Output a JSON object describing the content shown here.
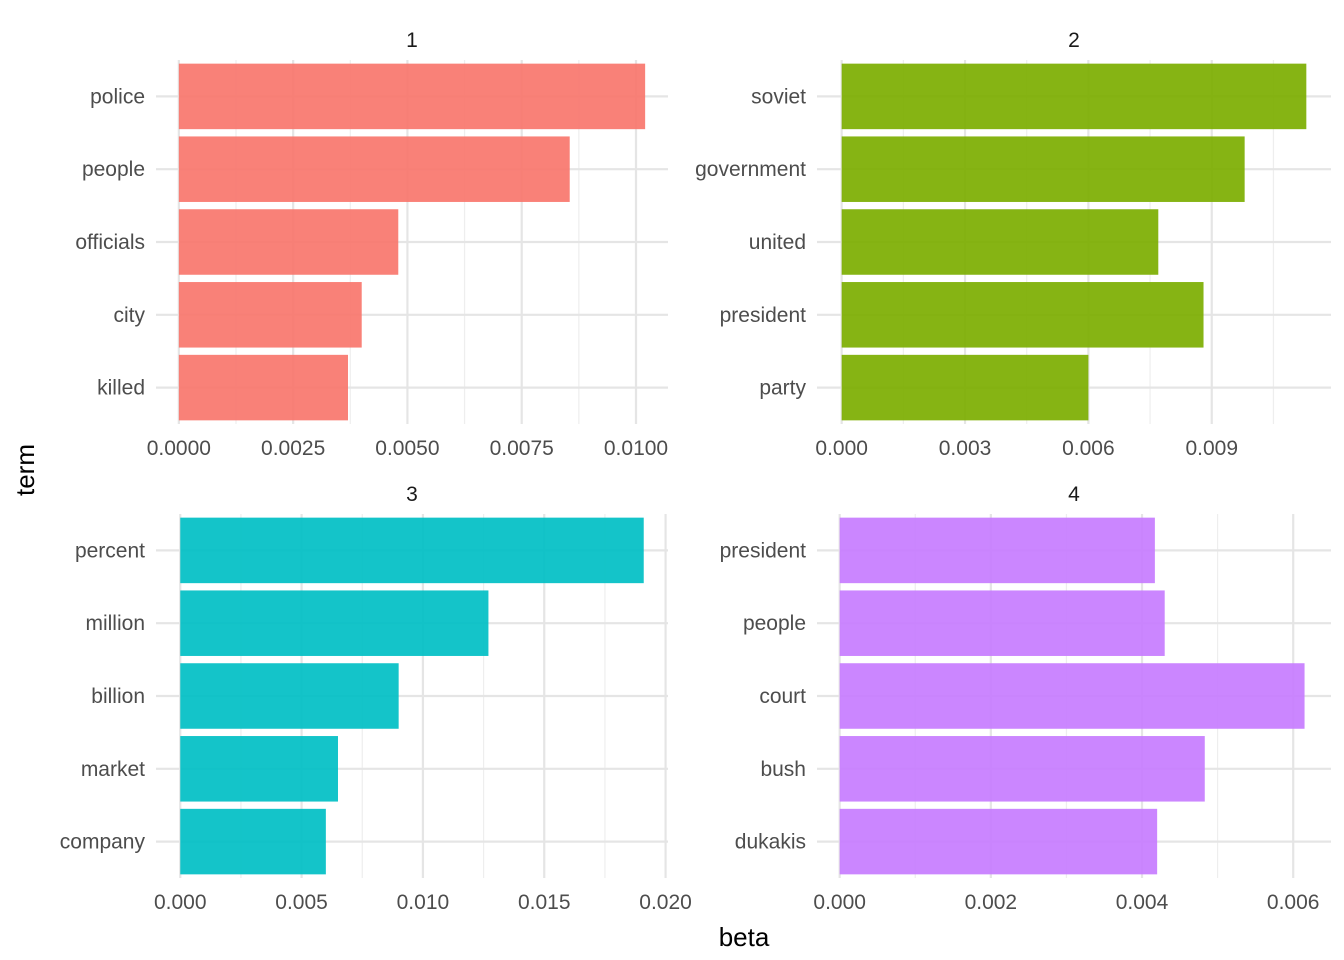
{
  "chart_data": {
    "type": "bar",
    "orientation": "horizontal",
    "facet_layout": "2x2",
    "xlabel": "beta",
    "ylabel": "term",
    "grid": true,
    "legend": "none",
    "panels": [
      {
        "title": "1",
        "color": "#F8766D",
        "categories": [
          "police",
          "people",
          "officials",
          "city",
          "killed"
        ],
        "values": [
          0.0102,
          0.00855,
          0.0048,
          0.004,
          0.0037
        ],
        "xlim": [
          -0.0005,
          0.0107
        ],
        "xticks": [
          0,
          0.0025,
          0.005,
          0.0075,
          0.01
        ],
        "xtick_labels": [
          "0.0000",
          "0.0025",
          "0.0050",
          "0.0075",
          "0.0100"
        ]
      },
      {
        "title": "2",
        "color": "#7CAE00",
        "categories": [
          "soviet",
          "government",
          "united",
          "president",
          "party"
        ],
        "values": [
          0.0113,
          0.0098,
          0.0077,
          0.0088,
          0.006
        ],
        "xlim": [
          -0.0006,
          0.0119
        ],
        "xticks": [
          0,
          0.003,
          0.006,
          0.009
        ],
        "xtick_labels": [
          "0.000",
          "0.003",
          "0.006",
          "0.009"
        ]
      },
      {
        "title": "3",
        "color": "#00BFC4",
        "categories": [
          "percent",
          "million",
          "billion",
          "market",
          "company"
        ],
        "values": [
          0.0191,
          0.0127,
          0.009,
          0.0065,
          0.006
        ],
        "xlim": [
          -0.001,
          0.0201
        ],
        "xticks": [
          0,
          0.005,
          0.01,
          0.015,
          0.02
        ],
        "xtick_labels": [
          "0.000",
          "0.005",
          "0.010",
          "0.015",
          "0.020"
        ]
      },
      {
        "title": "4",
        "color": "#C77CFF",
        "categories": [
          "president",
          "people",
          "court",
          "bush",
          "dukakis"
        ],
        "values": [
          0.00417,
          0.0043,
          0.00615,
          0.00483,
          0.0042
        ],
        "xlim": [
          -0.0003,
          0.0065
        ],
        "xticks": [
          0,
          0.002,
          0.004,
          0.006
        ],
        "xtick_labels": [
          "0.000",
          "0.002",
          "0.004",
          "0.006"
        ]
      }
    ]
  }
}
